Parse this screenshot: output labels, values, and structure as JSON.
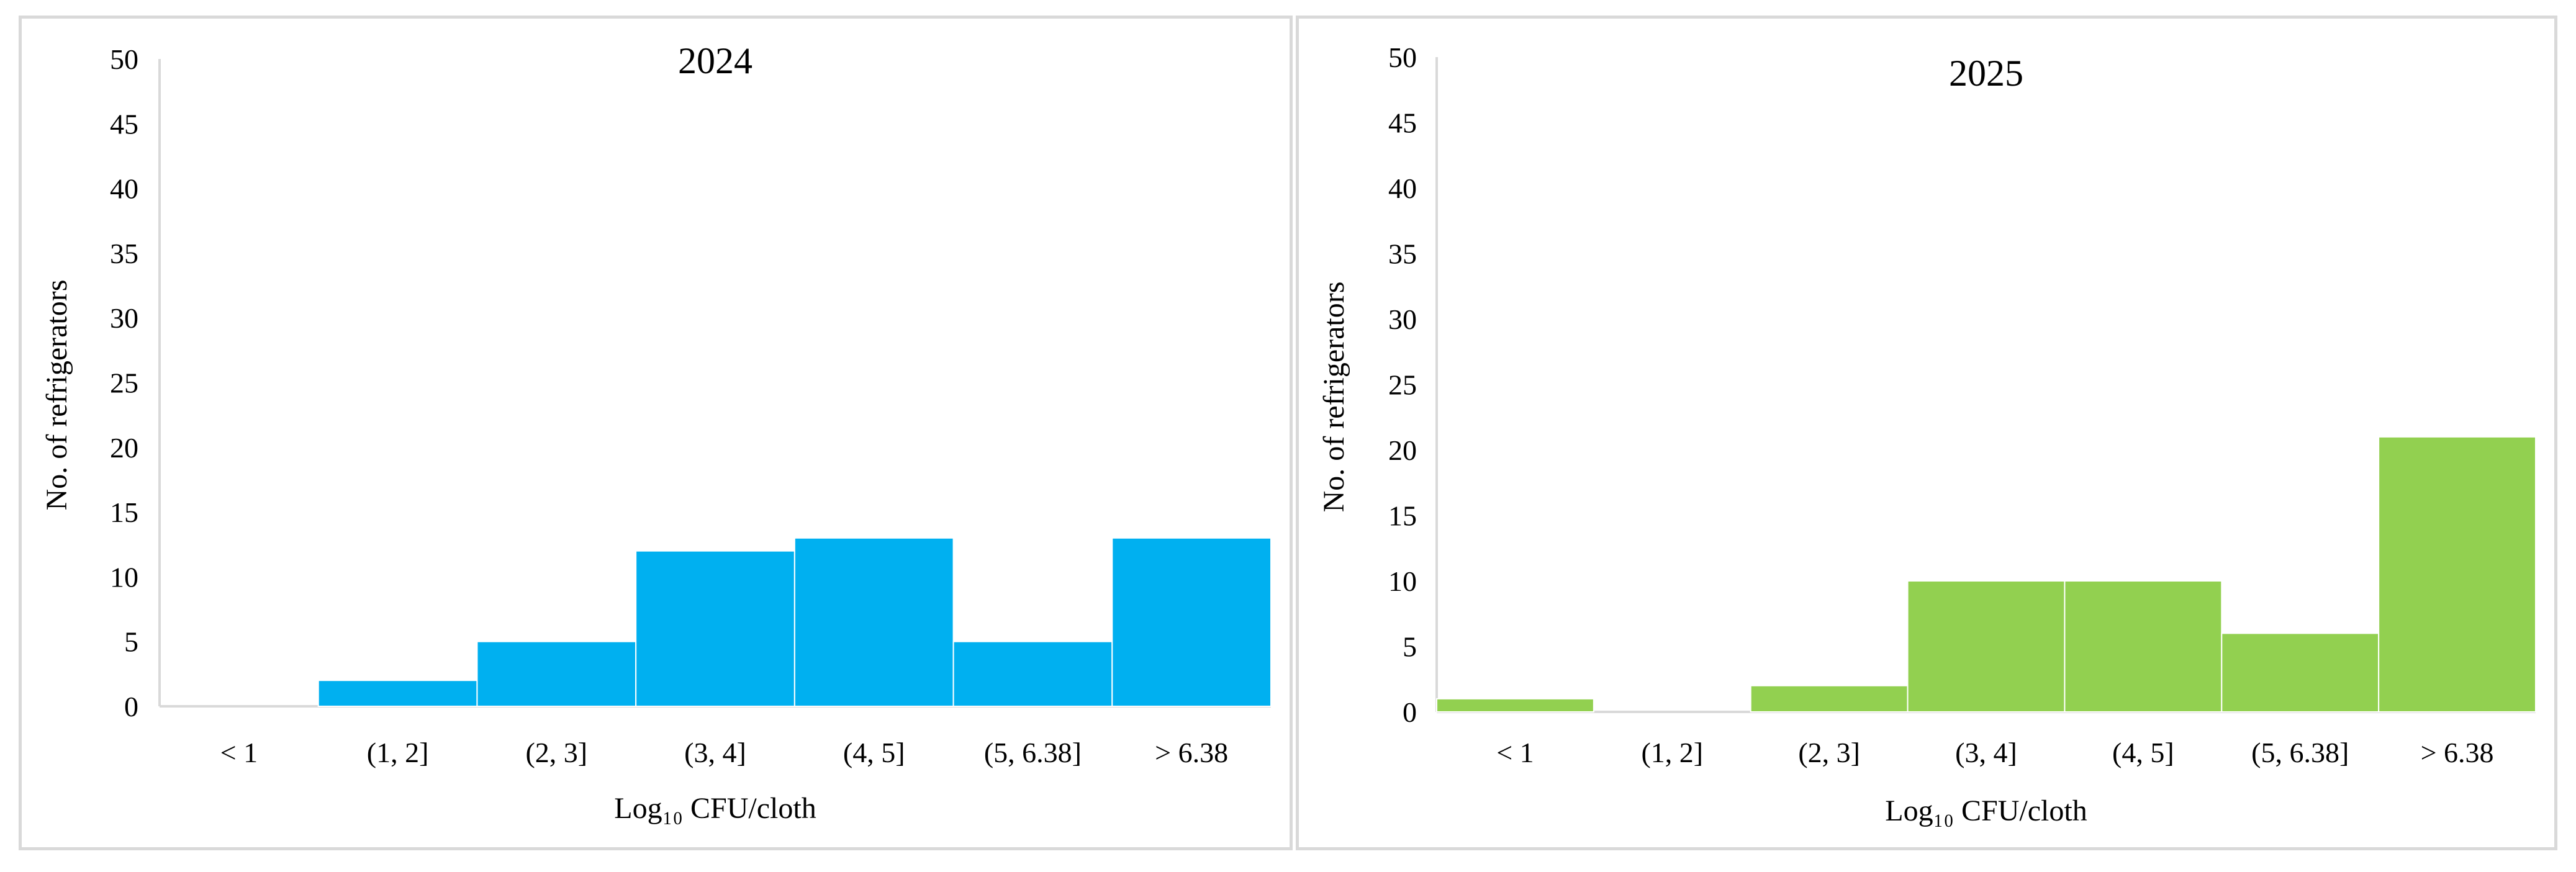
{
  "chart_data": [
    {
      "type": "bar",
      "title": "2024",
      "xlabel": "Log₁₀ CFU/cloth",
      "ylabel": "No. of refrigerators",
      "categories": [
        "< 1",
        "(1, 2]",
        "(2, 3]",
        "(3, 4]",
        "(4, 5]",
        "(5, 6.38]",
        "> 6.38"
      ],
      "values": [
        0,
        2,
        5,
        12,
        13,
        5,
        13
      ],
      "ylim": [
        0,
        50
      ],
      "yticks": [
        0,
        5,
        10,
        15,
        20,
        25,
        30,
        35,
        40,
        45,
        50
      ],
      "color": "#00B0F0",
      "grid": false
    },
    {
      "type": "bar",
      "title": "2025",
      "xlabel": "Log₁₀ CFU/cloth",
      "ylabel": "No. of refrigerators",
      "categories": [
        "< 1",
        "(1, 2]",
        "(2, 3]",
        "(3, 4]",
        "(4, 5]",
        "(5, 6.38]",
        "> 6.38"
      ],
      "values": [
        1,
        0,
        2,
        10,
        10,
        6,
        21
      ],
      "ylim": [
        0,
        50
      ],
      "yticks": [
        0,
        5,
        10,
        15,
        20,
        25,
        30,
        35,
        40,
        45,
        50
      ],
      "color": "#92D050",
      "grid": false
    }
  ]
}
